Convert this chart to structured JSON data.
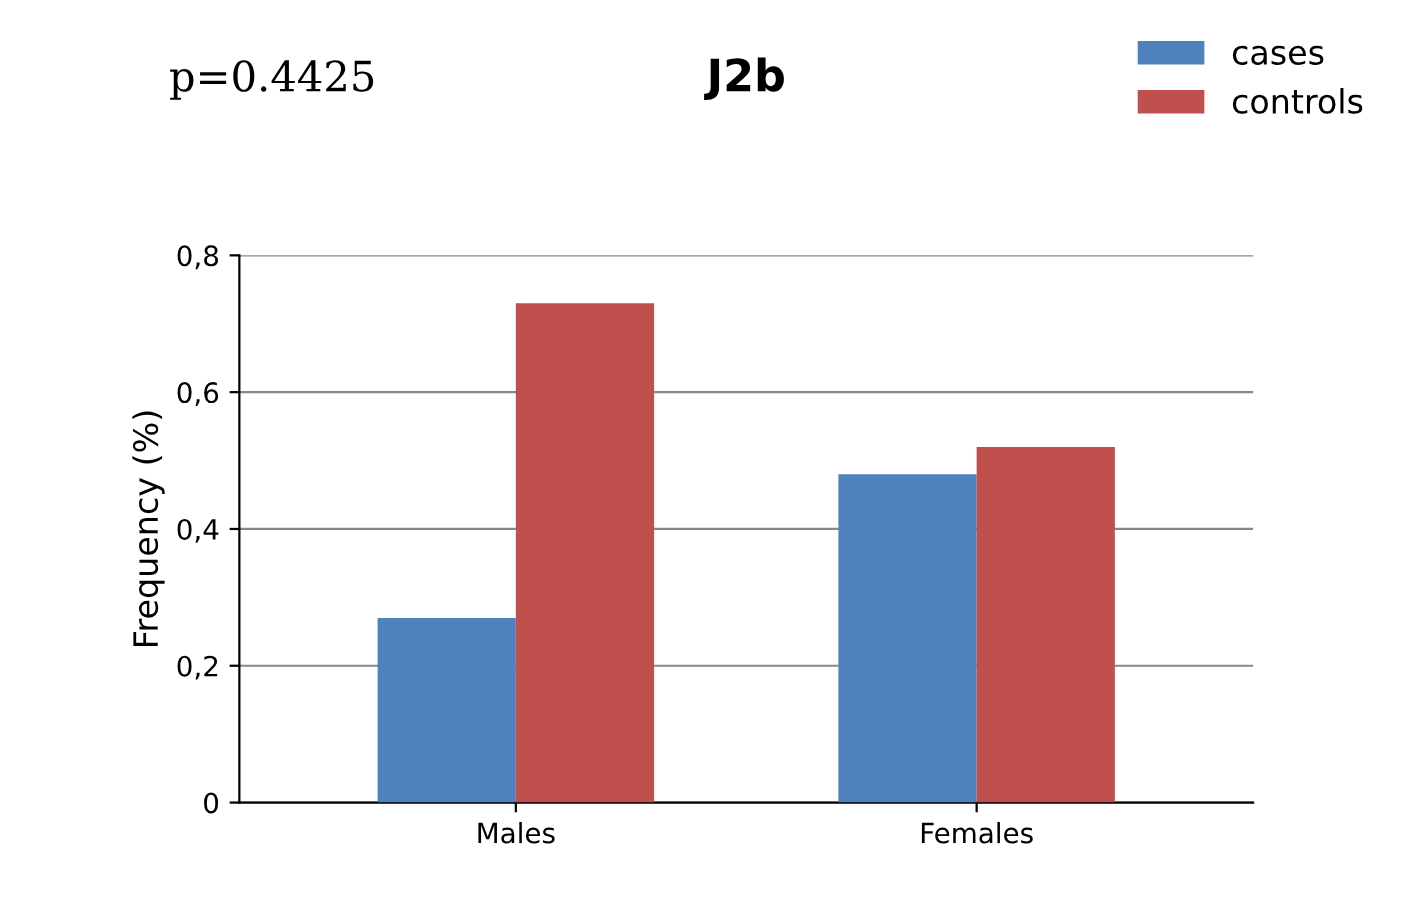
{
  "chart_data": {
    "type": "bar",
    "title": "J2b",
    "ylabel": "Frequency (%)",
    "categories": [
      "Males",
      "Females"
    ],
    "series": [
      {
        "name": "cases",
        "color": "#4f81bd",
        "values": [
          0.27,
          0.48
        ]
      },
      {
        "name": "controls",
        "color": "#c0504d",
        "values": [
          0.73,
          0.52
        ]
      }
    ],
    "ylim": [
      0,
      0.8
    ],
    "yticks": [
      {
        "value": 0,
        "label": "0"
      },
      {
        "value": 0.2,
        "label": "0,2"
      },
      {
        "value": 0.4,
        "label": "0,4"
      },
      {
        "value": 0.6,
        "label": "0,6"
      },
      {
        "value": 0.8,
        "label": "0,8"
      }
    ],
    "grid": "y",
    "legend": "top right",
    "annotations": [
      "p=0.4425"
    ]
  }
}
